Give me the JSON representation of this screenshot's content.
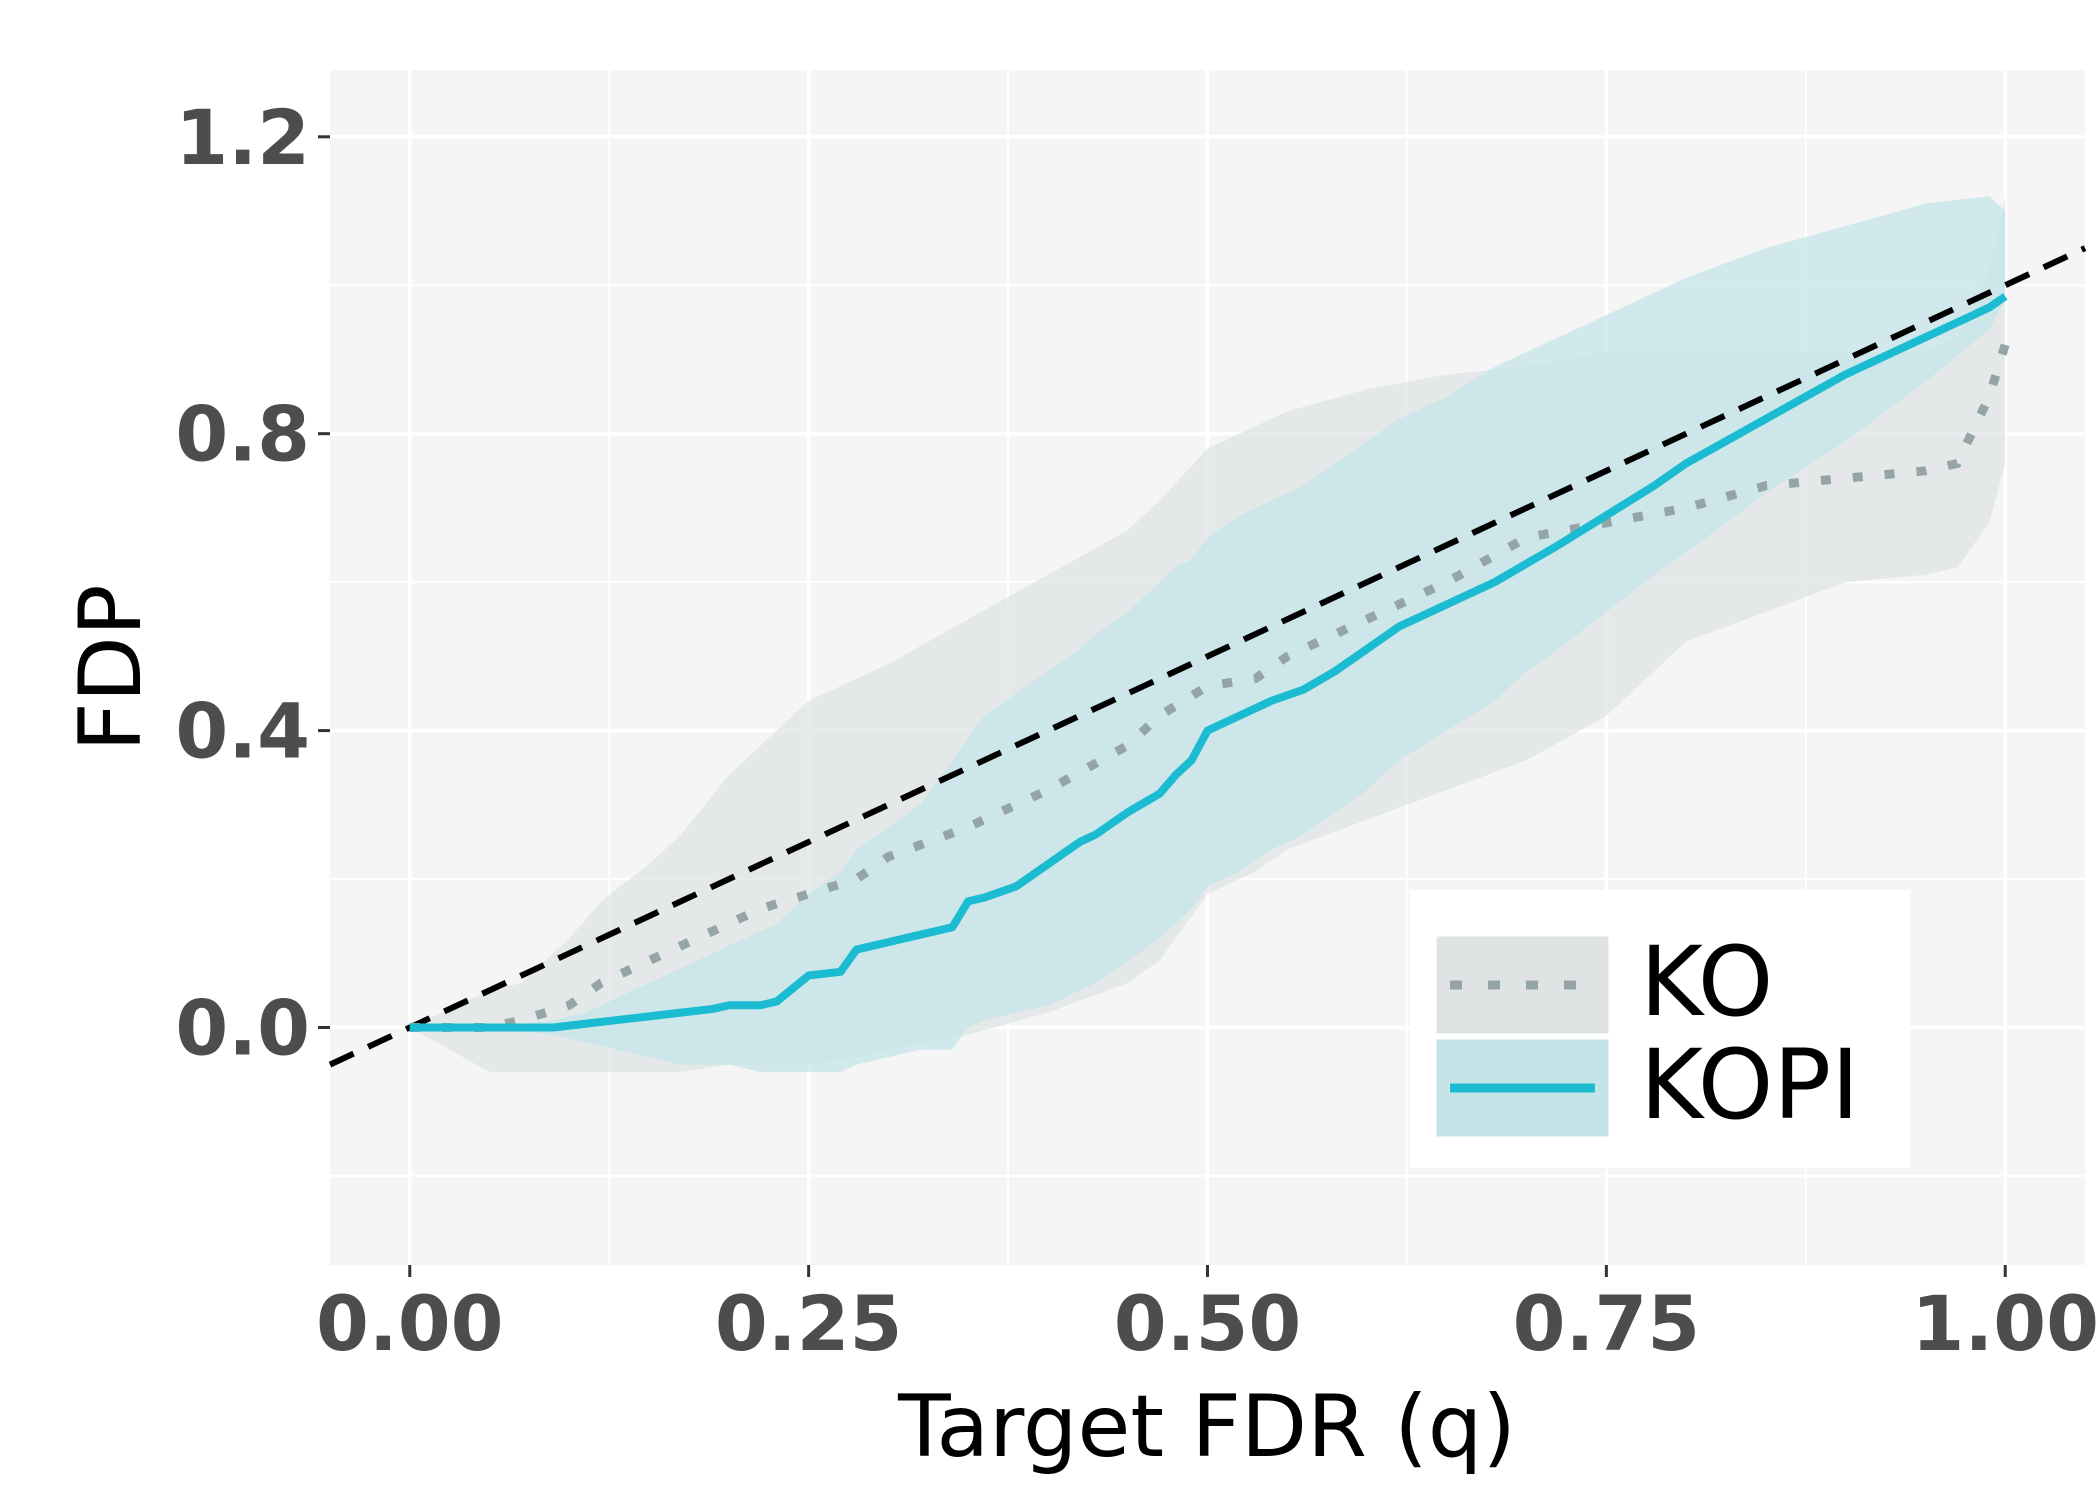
{
  "chart_data": {
    "type": "line",
    "title": "",
    "xlabel": "Target FDR (q)",
    "ylabel": "FDP",
    "xlim": [
      -0.05,
      1.05
    ],
    "ylim": [
      -0.32,
      1.29
    ],
    "x_ticks": [
      0.0,
      0.25,
      0.5,
      0.75,
      1.0
    ],
    "x_tick_labels": [
      "0.00",
      "0.25",
      "0.50",
      "0.75",
      "1.00"
    ],
    "y_ticks": [
      0.0,
      0.4,
      0.8,
      1.2
    ],
    "y_tick_labels": [
      "0.0",
      "0.4",
      "0.8",
      "1.2"
    ],
    "grid": true,
    "legend_position": "bottom-right",
    "reference_line": {
      "style": "dashed",
      "color": "#000000",
      "slope": 1,
      "intercept": 0
    },
    "series": [
      {
        "name": "KO",
        "style": "dotted",
        "color": "#95a5a6",
        "band_color": "#dfe3e4",
        "x": [
          0.0,
          0.05,
          0.07,
          0.1,
          0.12,
          0.15,
          0.17,
          0.2,
          0.22,
          0.25,
          0.28,
          0.3,
          0.35,
          0.4,
          0.45,
          0.47,
          0.5,
          0.53,
          0.55,
          0.6,
          0.65,
          0.7,
          0.75,
          0.8,
          0.85,
          0.9,
          0.95,
          0.97,
          0.99,
          1.0
        ],
        "mean": [
          0.0,
          0.0,
          0.01,
          0.03,
          0.06,
          0.09,
          0.11,
          0.14,
          0.16,
          0.18,
          0.2,
          0.23,
          0.27,
          0.32,
          0.38,
          0.42,
          0.46,
          0.47,
          0.5,
          0.55,
          0.6,
          0.66,
          0.68,
          0.7,
          0.73,
          0.74,
          0.75,
          0.76,
          0.85,
          0.92
        ],
        "lower": [
          0.0,
          -0.06,
          -0.06,
          -0.06,
          -0.06,
          -0.06,
          -0.06,
          -0.05,
          -0.05,
          -0.05,
          -0.04,
          -0.03,
          -0.01,
          0.02,
          0.06,
          0.09,
          0.18,
          0.21,
          0.24,
          0.28,
          0.32,
          0.36,
          0.42,
          0.52,
          0.56,
          0.6,
          0.61,
          0.62,
          0.68,
          0.76
        ],
        "upper": [
          0.0,
          0.05,
          0.06,
          0.12,
          0.17,
          0.22,
          0.26,
          0.34,
          0.38,
          0.44,
          0.47,
          0.49,
          0.55,
          0.61,
          0.67,
          0.71,
          0.78,
          0.81,
          0.83,
          0.86,
          0.88,
          0.89,
          0.91,
          0.91,
          0.91,
          0.91,
          0.91,
          0.93,
          1.02,
          1.12
        ]
      },
      {
        "name": "KOPI",
        "style": "solid",
        "color": "#1bbcd1",
        "band_color": "#c4e4ea",
        "x": [
          0.0,
          0.05,
          0.09,
          0.11,
          0.13,
          0.15,
          0.17,
          0.19,
          0.2,
          0.22,
          0.23,
          0.25,
          0.27,
          0.28,
          0.3,
          0.32,
          0.33,
          0.34,
          0.35,
          0.36,
          0.38,
          0.4,
          0.42,
          0.43,
          0.45,
          0.47,
          0.48,
          0.49,
          0.5,
          0.52,
          0.54,
          0.56,
          0.58,
          0.6,
          0.62,
          0.65,
          0.68,
          0.7,
          0.72,
          0.75,
          0.78,
          0.8,
          0.85,
          0.9,
          0.95,
          0.99,
          1.0
        ],
        "mean": [
          0.0,
          0.0,
          0.0,
          0.005,
          0.01,
          0.015,
          0.02,
          0.025,
          0.03,
          0.03,
          0.035,
          0.07,
          0.075,
          0.105,
          0.115,
          0.125,
          0.13,
          0.135,
          0.17,
          0.175,
          0.19,
          0.22,
          0.25,
          0.26,
          0.29,
          0.315,
          0.34,
          0.36,
          0.4,
          0.42,
          0.44,
          0.455,
          0.48,
          0.51,
          0.54,
          0.57,
          0.6,
          0.625,
          0.65,
          0.69,
          0.73,
          0.76,
          0.82,
          0.88,
          0.93,
          0.97,
          0.985
        ],
        "lower": [
          0.0,
          0.0,
          -0.01,
          -0.02,
          -0.03,
          -0.04,
          -0.05,
          -0.05,
          -0.05,
          -0.06,
          -0.06,
          -0.06,
          -0.06,
          -0.05,
          -0.04,
          -0.03,
          -0.03,
          -0.03,
          0.0,
          0.01,
          0.02,
          0.03,
          0.05,
          0.06,
          0.09,
          0.12,
          0.14,
          0.16,
          0.19,
          0.21,
          0.24,
          0.26,
          0.29,
          0.32,
          0.36,
          0.4,
          0.44,
          0.48,
          0.51,
          0.56,
          0.61,
          0.64,
          0.72,
          0.79,
          0.87,
          0.94,
          0.98
        ],
        "upper": [
          0.0,
          0.0,
          0.01,
          0.02,
          0.04,
          0.06,
          0.08,
          0.1,
          0.11,
          0.13,
          0.14,
          0.18,
          0.21,
          0.24,
          0.27,
          0.3,
          0.33,
          0.36,
          0.39,
          0.42,
          0.45,
          0.48,
          0.51,
          0.53,
          0.56,
          0.6,
          0.62,
          0.63,
          0.66,
          0.69,
          0.71,
          0.73,
          0.76,
          0.79,
          0.82,
          0.85,
          0.89,
          0.91,
          0.93,
          0.96,
          0.99,
          1.01,
          1.05,
          1.08,
          1.11,
          1.12,
          1.1
        ]
      }
    ]
  }
}
